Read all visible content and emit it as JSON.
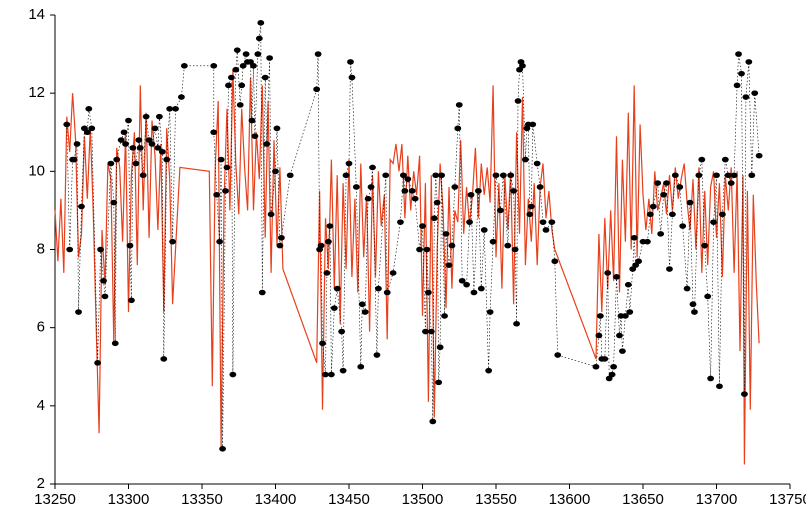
{
  "chart_data": {
    "type": "scatter",
    "xlim": [
      13250,
      13750
    ],
    "xticks": [
      13250,
      13300,
      13350,
      13400,
      13450,
      13500,
      13550,
      13600,
      13650,
      13700,
      13750
    ],
    "ylim": [
      2,
      14
    ],
    "yticks": [
      2,
      4,
      6,
      8,
      10,
      12,
      14
    ],
    "series": [
      {
        "color": "#e8401c",
        "style": "line",
        "x": [
          13250,
          13252,
          13254,
          13256,
          13258,
          13260,
          13262,
          13264,
          13266,
          13268,
          13270,
          13272,
          13274,
          13276,
          13278,
          13280,
          13282,
          13284,
          13286,
          13288,
          13290,
          13292,
          13294,
          13296,
          13298,
          13300,
          13302,
          13304,
          13306,
          13308,
          13310,
          13312,
          13314,
          13316,
          13318,
          13320,
          13322,
          13324,
          13326,
          13328,
          13330,
          13335,
          13355,
          13357,
          13359,
          13361,
          13363,
          13365,
          13367,
          13369,
          13371,
          13373,
          13375,
          13377,
          13379,
          13381,
          13383,
          13385,
          13387,
          13389,
          13391,
          13393,
          13395,
          13397,
          13399,
          13401,
          13403,
          13405,
          13428,
          13430,
          13432,
          13434,
          13436,
          13438,
          13440,
          13442,
          13444,
          13446,
          13448,
          13450,
          13452,
          13454,
          13456,
          13458,
          13460,
          13462,
          13464,
          13466,
          13468,
          13470,
          13472,
          13474,
          13476,
          13478,
          13480,
          13482,
          13484,
          13486,
          13488,
          13490,
          13492,
          13494,
          13496,
          13498,
          13500,
          13502,
          13504,
          13506,
          13508,
          13510,
          13512,
          13514,
          13516,
          13518,
          13520,
          13522,
          13524,
          13526,
          13528,
          13530,
          13532,
          13534,
          13536,
          13538,
          13540,
          13542,
          13544,
          13546,
          13548,
          13550,
          13552,
          13554,
          13556,
          13558,
          13560,
          13562,
          13564,
          13566,
          13568,
          13570,
          13572,
          13574,
          13576,
          13578,
          13580,
          13582,
          13584,
          13586,
          13588,
          13590,
          13618,
          13620,
          13622,
          13624,
          13626,
          13628,
          13630,
          13632,
          13634,
          13636,
          13638,
          13640,
          13642,
          13644,
          13646,
          13648,
          13650,
          13652,
          13654,
          13656,
          13658,
          13660,
          13662,
          13664,
          13666,
          13668,
          13670,
          13672,
          13674,
          13676,
          13678,
          13680,
          13682,
          13684,
          13686,
          13688,
          13690,
          13692,
          13694,
          13696,
          13698,
          13700,
          13702,
          13704,
          13706,
          13708,
          13710,
          13712,
          13714,
          13716,
          13718,
          13719,
          13721,
          13723,
          13725,
          13727,
          13729
        ],
        "values": [
          9.0,
          7.7,
          9.3,
          7.4,
          11.4,
          10.5,
          12.0,
          10.8,
          7.8,
          8.4,
          10.9,
          9.3,
          11.1,
          9.0,
          6.0,
          3.3,
          8.5,
          7.1,
          10.2,
          9.8,
          5.6,
          10.6,
          10.1,
          8.2,
          11.0,
          6.4,
          9.9,
          11.0,
          7.6,
          12.2,
          9.0,
          11.5,
          8.3,
          11.3,
          10.4,
          8.5,
          10.7,
          6.4,
          11.1,
          9.8,
          6.6,
          10.1,
          10.0,
          4.5,
          10.1,
          11.8,
          2.9,
          9.3,
          11.6,
          9.0,
          12.6,
          10.2,
          8.9,
          11.6,
          10.1,
          9.0,
          12.4,
          9.0,
          11.0,
          9.8,
          12.2,
          8.3,
          11.8,
          7.4,
          10.8,
          8.1,
          10.1,
          7.5,
          5.1,
          9.5,
          3.9,
          8.8,
          7.5,
          10.3,
          7.0,
          9.9,
          6.1,
          9.7,
          7.5,
          10.3,
          7.3,
          9.3,
          6.9,
          10.2,
          7.8,
          9.4,
          5.9,
          9.9,
          7.3,
          10.0,
          8.6,
          9.4,
          5.7,
          10.3,
          10.2,
          10.7,
          10.0,
          10.7,
          8.8,
          10.4,
          9.0,
          10.0,
          9.4,
          10.4,
          6.3,
          9.7,
          4.1,
          9.9,
          3.7,
          8.0,
          10.2,
          9.0,
          6.5,
          9.6,
          7.0,
          9.0,
          8.7,
          10.8,
          8.4,
          9.6,
          8.6,
          9.4,
          10.6,
          8.8,
          10.2,
          9.4,
          10.1,
          9.2,
          12.2,
          7.8,
          9.7,
          7.0,
          9.9,
          8.5,
          10.0,
          6.6,
          11.0,
          8.4,
          11.9,
          7.6,
          9.3,
          8.2,
          9.7,
          7.6,
          9.6,
          10.2,
          8.8,
          9.5,
          8.5,
          8.0,
          5.2,
          8.4,
          6.4,
          8.8,
          7.0,
          9.0,
          7.2,
          10.9,
          6.9,
          10.3,
          8.2,
          11.5,
          8.0,
          12.2,
          7.8,
          11.2,
          9.4,
          8.5,
          9.3,
          8.4,
          10.0,
          9.0,
          9.3,
          9.7,
          8.9,
          9.9,
          9.0,
          10.1,
          9.3,
          9.8,
          10.2,
          9.2,
          8.5,
          9.8,
          8.0,
          10.1,
          7.4,
          9.5,
          7.6,
          9.6,
          10.0,
          8.3,
          9.7,
          7.3,
          9.9,
          9.0,
          10.1,
          7.4,
          10.0,
          5.4,
          9.9,
          2.5,
          9.5,
          3.9,
          9.4,
          7.2,
          5.6
        ]
      },
      {
        "color": "#000000",
        "style": "dotted-markers",
        "x": [
          13258,
          13260,
          13262,
          13263,
          13265,
          13266,
          13268,
          13270,
          13272,
          13273,
          13275,
          13279,
          13281,
          13283,
          13284,
          13288,
          13290,
          13291,
          13292,
          13295,
          13297,
          13298,
          13300,
          13301,
          13302,
          13303,
          13305,
          13307,
          13308,
          13310,
          13312,
          13314,
          13316,
          13318,
          13320,
          13321,
          13323,
          13324,
          13326,
          13328,
          13330,
          13332,
          13336,
          13338,
          13358,
          13358,
          13360,
          13362,
          13363,
          13364,
          13366,
          13367,
          13368,
          13370,
          13371,
          13373,
          13374,
          13376,
          13377,
          13378,
          13380,
          13381,
          13383,
          13384,
          13385,
          13386,
          13388,
          13389,
          13390,
          13391,
          13393,
          13394,
          13396,
          13397,
          13400,
          13401,
          13403,
          13404,
          13410,
          13428,
          13429,
          13430,
          13431,
          13432,
          13434,
          13435,
          13436,
          13437,
          13438,
          13440,
          13442,
          13445,
          13446,
          13448,
          13450,
          13451,
          13452,
          13455,
          13458,
          13459,
          13461,
          13463,
          13465,
          13466,
          13469,
          13470,
          13475,
          13476,
          13480,
          13485,
          13487,
          13488,
          13490,
          13493,
          13495,
          13498,
          13500,
          13502,
          13503,
          13504,
          13506,
          13507,
          13508,
          13509,
          13510,
          13511,
          13512,
          13513,
          13515,
          13516,
          13518,
          13520,
          13522,
          13524,
          13525,
          13527,
          13530,
          13532,
          13533,
          13535,
          13538,
          13540,
          13542,
          13545,
          13546,
          13548,
          13550,
          13553,
          13555,
          13558,
          13560,
          13562,
          13563,
          13564,
          13565,
          13566,
          13567,
          13568,
          13570,
          13571,
          13572,
          13573,
          13574,
          13575,
          13578,
          13580,
          13582,
          13584,
          13588,
          13590,
          13592,
          13618,
          13620,
          13621,
          13622,
          13624,
          13626,
          13627,
          13629,
          13630,
          13632,
          13634,
          13635,
          13636,
          13638,
          13640,
          13641,
          13643,
          13644,
          13645,
          13647,
          13650,
          13653,
          13655,
          13657,
          13660,
          13662,
          13664,
          13666,
          13668,
          13670,
          13672,
          13675,
          13677,
          13680,
          13682,
          13684,
          13685,
          13688,
          13690,
          13692,
          13694,
          13696,
          13698,
          13700,
          13702,
          13704,
          13706,
          13708,
          13710,
          13712,
          13714,
          13715,
          13717,
          13719,
          13720,
          13722,
          13724,
          13726,
          13729
        ],
        "values": [
          11.2,
          8.0,
          10.3,
          10.3,
          10.7,
          6.4,
          9.1,
          11.1,
          11.0,
          11.6,
          11.1,
          5.1,
          8.0,
          7.2,
          6.8,
          10.2,
          9.2,
          5.6,
          10.3,
          10.8,
          11.0,
          10.7,
          11.3,
          8.1,
          6.7,
          10.6,
          10.2,
          10.8,
          10.6,
          9.9,
          11.4,
          10.8,
          10.7,
          11.1,
          10.6,
          11.4,
          10.5,
          5.2,
          10.3,
          11.6,
          8.2,
          11.6,
          11.9,
          12.7,
          12.7,
          11.0,
          9.4,
          8.2,
          10.3,
          2.9,
          9.5,
          10.1,
          12.2,
          12.4,
          4.8,
          12.6,
          13.1,
          11.7,
          12.2,
          12.7,
          13.0,
          12.8,
          12.8,
          11.3,
          12.7,
          10.9,
          13.0,
          13.4,
          13.8,
          6.9,
          12.4,
          10.7,
          12.9,
          8.9,
          10.0,
          11.1,
          8.1,
          8.3,
          9.9,
          12.1,
          13.0,
          8.0,
          8.1,
          5.6,
          4.8,
          7.4,
          8.2,
          8.6,
          4.8,
          6.5,
          7.0,
          5.9,
          4.9,
          9.9,
          10.2,
          12.8,
          12.4,
          9.6,
          5.0,
          6.6,
          6.4,
          9.3,
          9.6,
          10.1,
          5.3,
          7.0,
          9.9,
          6.9,
          7.4,
          8.7,
          9.9,
          9.5,
          9.8,
          9.5,
          9.3,
          8.0,
          8.6,
          5.9,
          8.0,
          6.9,
          5.9,
          3.6,
          8.8,
          9.9,
          9.2,
          4.6,
          5.5,
          9.9,
          6.3,
          8.4,
          7.6,
          8.1,
          9.6,
          11.1,
          11.7,
          7.2,
          7.1,
          8.7,
          9.4,
          6.9,
          9.5,
          7.0,
          8.5,
          4.9,
          6.4,
          8.2,
          9.9,
          9.0,
          9.9,
          8.1,
          9.9,
          9.5,
          8.0,
          6.1,
          11.8,
          12.6,
          12.8,
          12.7,
          10.3,
          11.1,
          11.2,
          8.9,
          9.1,
          11.2,
          10.2,
          9.6,
          8.7,
          8.5,
          8.7,
          7.7,
          5.3,
          5.0,
          5.8,
          6.3,
          5.2,
          5.2,
          7.4,
          4.7,
          4.8,
          5.0,
          7.3,
          5.8,
          6.3,
          5.4,
          6.3,
          7.1,
          6.4,
          7.5,
          8.3,
          7.6,
          7.7,
          8.2,
          8.2,
          8.9,
          9.1,
          9.7,
          8.4,
          9.4,
          9.7,
          7.5,
          8.9,
          9.9,
          9.6,
          8.6,
          7.0,
          9.2,
          6.6,
          6.4,
          9.9,
          10.3,
          8.1,
          6.8,
          4.7,
          8.7,
          9.9,
          4.5,
          8.9,
          10.3,
          9.9,
          9.7,
          9.9,
          12.2,
          13.0,
          12.5,
          4.3,
          11.9,
          12.8,
          9.9,
          12.0,
          10.4
        ]
      }
    ]
  }
}
